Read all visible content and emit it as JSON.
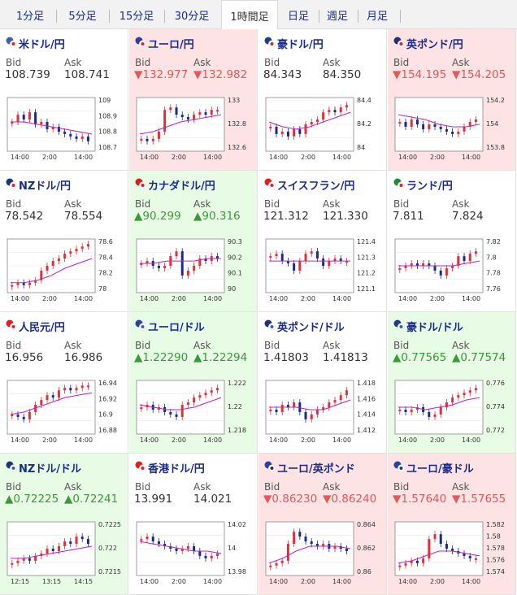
{
  "timeframe_tabs": [
    "1分足",
    "5分足",
    "15分足",
    "30分足",
    "1時間足",
    "日足",
    "週足",
    "月足"
  ],
  "active_tab": "1時間足",
  "bid_label": "Bid",
  "ask_label": "Ask",
  "colors": {
    "up_bg": "#e8fbe4",
    "down_bg": "#fde3e3",
    "up_text": "#3a9a3a",
    "down_text": "#e05a5a",
    "bull_candle": "#e0303a",
    "bear_candle": "#1a2a8a",
    "ma_line": "#c020c0",
    "ma_fast": "#20b0a0"
  },
  "pairs": [
    {
      "name": "米ドル/円",
      "flag": "us-jp-flag",
      "trend": "neutral",
      "bid": "108.739",
      "ask": "108.741",
      "y_ticks": [
        "109",
        "108.9",
        "108.8",
        "108.7"
      ],
      "x_ticks": [
        "14:00",
        "2:00",
        "14:00"
      ],
      "shape": [
        0.55,
        0.7,
        0.6,
        0.75,
        0.5,
        0.55,
        0.4,
        0.45,
        0.35,
        0.3,
        0.25,
        0.2,
        0.25,
        0.15
      ],
      "ma": [
        0.55,
        0.55,
        0.5,
        0.45,
        0.4,
        0.35,
        0.3
      ]
    },
    {
      "name": "ユーロ/円",
      "flag": "eu-jp-flag",
      "trend": "down",
      "bid": "▼132.977",
      "ask": "▼132.982",
      "y_ticks": [
        "133",
        "132.8",
        "132.6"
      ],
      "x_ticks": [
        "14:00",
        "2:00",
        "14:00"
      ],
      "shape": [
        0.2,
        0.15,
        0.2,
        0.35,
        0.8,
        0.85,
        0.7,
        0.65,
        0.6,
        0.7,
        0.75,
        0.7,
        0.8,
        0.8
      ],
      "ma": [
        0.3,
        0.35,
        0.45,
        0.55,
        0.6,
        0.65,
        0.7
      ]
    },
    {
      "name": "豪ドル/円",
      "flag": "au-jp-flag",
      "trend": "neutral",
      "bid": "84.343",
      "ask": "84.350",
      "y_ticks": [
        "84.4",
        "84.2",
        "84"
      ],
      "x_ticks": [
        "14:00",
        "2:00",
        "14:00"
      ],
      "shape": [
        0.45,
        0.3,
        0.35,
        0.25,
        0.4,
        0.3,
        0.5,
        0.55,
        0.6,
        0.75,
        0.8,
        0.75,
        0.85,
        0.9
      ],
      "ma": [
        0.55,
        0.45,
        0.4,
        0.45,
        0.55,
        0.65,
        0.75
      ]
    },
    {
      "name": "英ポンド/円",
      "flag": "gb-jp-flag",
      "trend": "down",
      "bid": "▼154.195",
      "ask": "▼154.205",
      "y_ticks": [
        "154.2",
        "154",
        "153.8"
      ],
      "x_ticks": [
        "14:00",
        "2:00",
        "14:00"
      ],
      "shape": [
        0.55,
        0.45,
        0.6,
        0.5,
        0.4,
        0.5,
        0.45,
        0.4,
        0.35,
        0.3,
        0.35,
        0.45,
        0.55,
        0.6
      ],
      "ma": [
        0.7,
        0.65,
        0.6,
        0.5,
        0.45,
        0.45,
        0.5
      ]
    },
    {
      "name": "NZドル/円",
      "flag": "nz-jp-flag",
      "trend": "neutral",
      "bid": "78.542",
      "ask": "78.554",
      "y_ticks": [
        "78.6",
        "78.4",
        "78.2",
        "78"
      ],
      "x_ticks": [
        "14:00",
        "2:00",
        "14:00"
      ],
      "shape": [
        0.1,
        0.15,
        0.1,
        0.15,
        0.2,
        0.4,
        0.5,
        0.6,
        0.65,
        0.75,
        0.8,
        0.85,
        0.9,
        0.95
      ],
      "ma": [
        0.15,
        0.15,
        0.2,
        0.3,
        0.45,
        0.55,
        0.65
      ]
    },
    {
      "name": "カナダドル/円",
      "flag": "ca-jp-flag",
      "trend": "up",
      "bid": "▲90.299",
      "ask": "▲90.316",
      "y_ticks": [
        "90.3",
        "90.2",
        "90.1",
        "90"
      ],
      "x_ticks": [
        "14:00",
        "2:00",
        "14:00"
      ],
      "shape": [
        0.55,
        0.6,
        0.5,
        0.45,
        0.5,
        0.7,
        0.8,
        0.3,
        0.4,
        0.5,
        0.65,
        0.6,
        0.7,
        0.65
      ],
      "ma": [
        0.55,
        0.55,
        0.6,
        0.6,
        0.6,
        0.65,
        0.65
      ]
    },
    {
      "name": "スイスフラン/円",
      "flag": "ch-jp-flag",
      "trend": "neutral",
      "bid": "121.312",
      "ask": "121.330",
      "y_ticks": [
        "121.4",
        "121.3",
        "121.2",
        "121.1"
      ],
      "x_ticks": [
        "14:00",
        "2:00",
        "14:00"
      ],
      "shape": [
        0.7,
        0.75,
        0.6,
        0.55,
        0.4,
        0.6,
        0.75,
        0.8,
        0.65,
        0.5,
        0.6,
        0.65,
        0.6,
        0.6
      ],
      "ma": [
        0.6,
        0.6,
        0.6,
        0.6,
        0.6,
        0.6,
        0.6
      ]
    },
    {
      "name": "ランド/円",
      "flag": "za-jp-flag",
      "trend": "neutral",
      "bid": "7.811",
      "ask": "7.824",
      "y_ticks": [
        "7.82",
        "7.8",
        "7.78",
        "7.76"
      ],
      "x_ticks": [
        "14:00",
        "2:00",
        "14:00"
      ],
      "shape": [
        0.45,
        0.5,
        0.55,
        0.5,
        0.55,
        0.5,
        0.4,
        0.3,
        0.45,
        0.5,
        0.7,
        0.6,
        0.75,
        0.8
      ],
      "ma": [
        0.5,
        0.5,
        0.5,
        0.5,
        0.5,
        0.55,
        0.6
      ]
    },
    {
      "name": "人民元/円",
      "flag": "cn-jp-flag",
      "trend": "neutral",
      "bid": "16.956",
      "ask": "16.986",
      "y_ticks": [
        "16.94",
        "16.92",
        "16.9",
        "16.88"
      ],
      "x_ticks": [
        "14:00",
        "2:00",
        "14:00"
      ],
      "shape": [
        0.35,
        0.3,
        0.25,
        0.4,
        0.55,
        0.65,
        0.75,
        0.7,
        0.85,
        0.9,
        0.85,
        0.9,
        0.95,
        0.95
      ],
      "ma": [
        0.35,
        0.4,
        0.5,
        0.6,
        0.7,
        0.75,
        0.8
      ]
    },
    {
      "name": "ユーロ/ドル",
      "flag": "eu-us-flag",
      "trend": "up",
      "bid": "▲1.22290",
      "ask": "▲1.22294",
      "y_ticks": [
        "1.222",
        "1.22",
        "1.218"
      ],
      "x_ticks": [
        "14:00",
        "2:00",
        "14:00"
      ],
      "shape": [
        0.5,
        0.55,
        0.45,
        0.5,
        0.4,
        0.35,
        0.3,
        0.55,
        0.6,
        0.7,
        0.75,
        0.8,
        0.85,
        0.9
      ],
      "ma": [
        0.55,
        0.5,
        0.45,
        0.45,
        0.5,
        0.6,
        0.7
      ]
    },
    {
      "name": "英ポンド/ドル",
      "flag": "gb-us-flag",
      "trend": "neutral",
      "bid": "1.41803",
      "ask": "1.41813",
      "y_ticks": [
        "1.418",
        "1.416",
        "1.414",
        "1.412"
      ],
      "x_ticks": [
        "14:00",
        "2:00",
        "14:00"
      ],
      "shape": [
        0.45,
        0.4,
        0.55,
        0.5,
        0.6,
        0.4,
        0.25,
        0.35,
        0.45,
        0.5,
        0.6,
        0.65,
        0.75,
        0.85
      ],
      "ma": [
        0.5,
        0.5,
        0.5,
        0.45,
        0.45,
        0.55,
        0.65
      ]
    },
    {
      "name": "豪ドル/ドル",
      "flag": "au-us-flag",
      "trend": "up",
      "bid": "▲0.77565",
      "ask": "▲0.77574",
      "y_ticks": [
        "0.776",
        "0.774",
        "0.772"
      ],
      "x_ticks": [
        "14:00",
        "2:00",
        "14:00"
      ],
      "shape": [
        0.45,
        0.4,
        0.45,
        0.5,
        0.4,
        0.3,
        0.35,
        0.5,
        0.6,
        0.7,
        0.75,
        0.8,
        0.85,
        0.9
      ],
      "ma": [
        0.5,
        0.5,
        0.45,
        0.5,
        0.55,
        0.65,
        0.7
      ]
    },
    {
      "name": "NZドル/ドル",
      "flag": "nz-us-flag",
      "trend": "up",
      "bid": "▲0.72225",
      "ask": "▲0.72241",
      "y_ticks": [
        "0.7225",
        "0.722",
        "0.7215"
      ],
      "x_ticks": [
        "12:15",
        "13:15",
        "14:15"
      ],
      "shape": [
        0.2,
        0.25,
        0.3,
        0.25,
        0.35,
        0.4,
        0.5,
        0.45,
        0.55,
        0.65,
        0.6,
        0.75,
        0.7,
        0.6
      ],
      "ma": [
        0.3,
        0.3,
        0.35,
        0.4,
        0.45,
        0.5,
        0.55
      ]
    },
    {
      "name": "香港ドル/円",
      "flag": "hk-jp-flag",
      "trend": "neutral",
      "bid": "13.991",
      "ask": "14.021",
      "y_ticks": [
        "14.02",
        "14",
        "13.98"
      ],
      "x_ticks": [
        "14:00",
        "2:00",
        "14:00"
      ],
      "shape": [
        0.7,
        0.75,
        0.65,
        0.6,
        0.55,
        0.5,
        0.45,
        0.5,
        0.55,
        0.45,
        0.35,
        0.3,
        0.35,
        0.4
      ],
      "ma": [
        0.65,
        0.6,
        0.55,
        0.5,
        0.45,
        0.45,
        0.4
      ]
    },
    {
      "name": "ユーロ/英ポンド",
      "flag": "eu-gb-flag",
      "trend": "down",
      "bid": "▼0.86230",
      "ask": "▼0.86240",
      "y_ticks": [
        "0.864",
        "0.862",
        "0.86"
      ],
      "x_ticks": [
        "14:00",
        "2:00",
        "14:00"
      ],
      "shape": [
        0.15,
        0.2,
        0.25,
        0.6,
        0.85,
        0.75,
        0.65,
        0.6,
        0.55,
        0.6,
        0.5,
        0.55,
        0.5,
        0.45
      ],
      "ma": [
        0.2,
        0.3,
        0.45,
        0.55,
        0.55,
        0.55,
        0.5
      ]
    },
    {
      "name": "ユーロ/豪ドル",
      "flag": "eu-au-flag",
      "trend": "down",
      "bid": "▼1.57640",
      "ask": "▼1.57655",
      "y_ticks": [
        "1.582",
        "1.58",
        "1.578",
        "1.576",
        "1.574"
      ],
      "x_ticks": [
        "14:00",
        "2:00",
        "14:00"
      ],
      "shape": [
        0.15,
        0.2,
        0.25,
        0.2,
        0.3,
        0.7,
        0.8,
        0.6,
        0.5,
        0.45,
        0.4,
        0.35,
        0.3,
        0.3
      ],
      "ma": [
        0.2,
        0.25,
        0.35,
        0.45,
        0.45,
        0.4,
        0.35
      ]
    }
  ]
}
